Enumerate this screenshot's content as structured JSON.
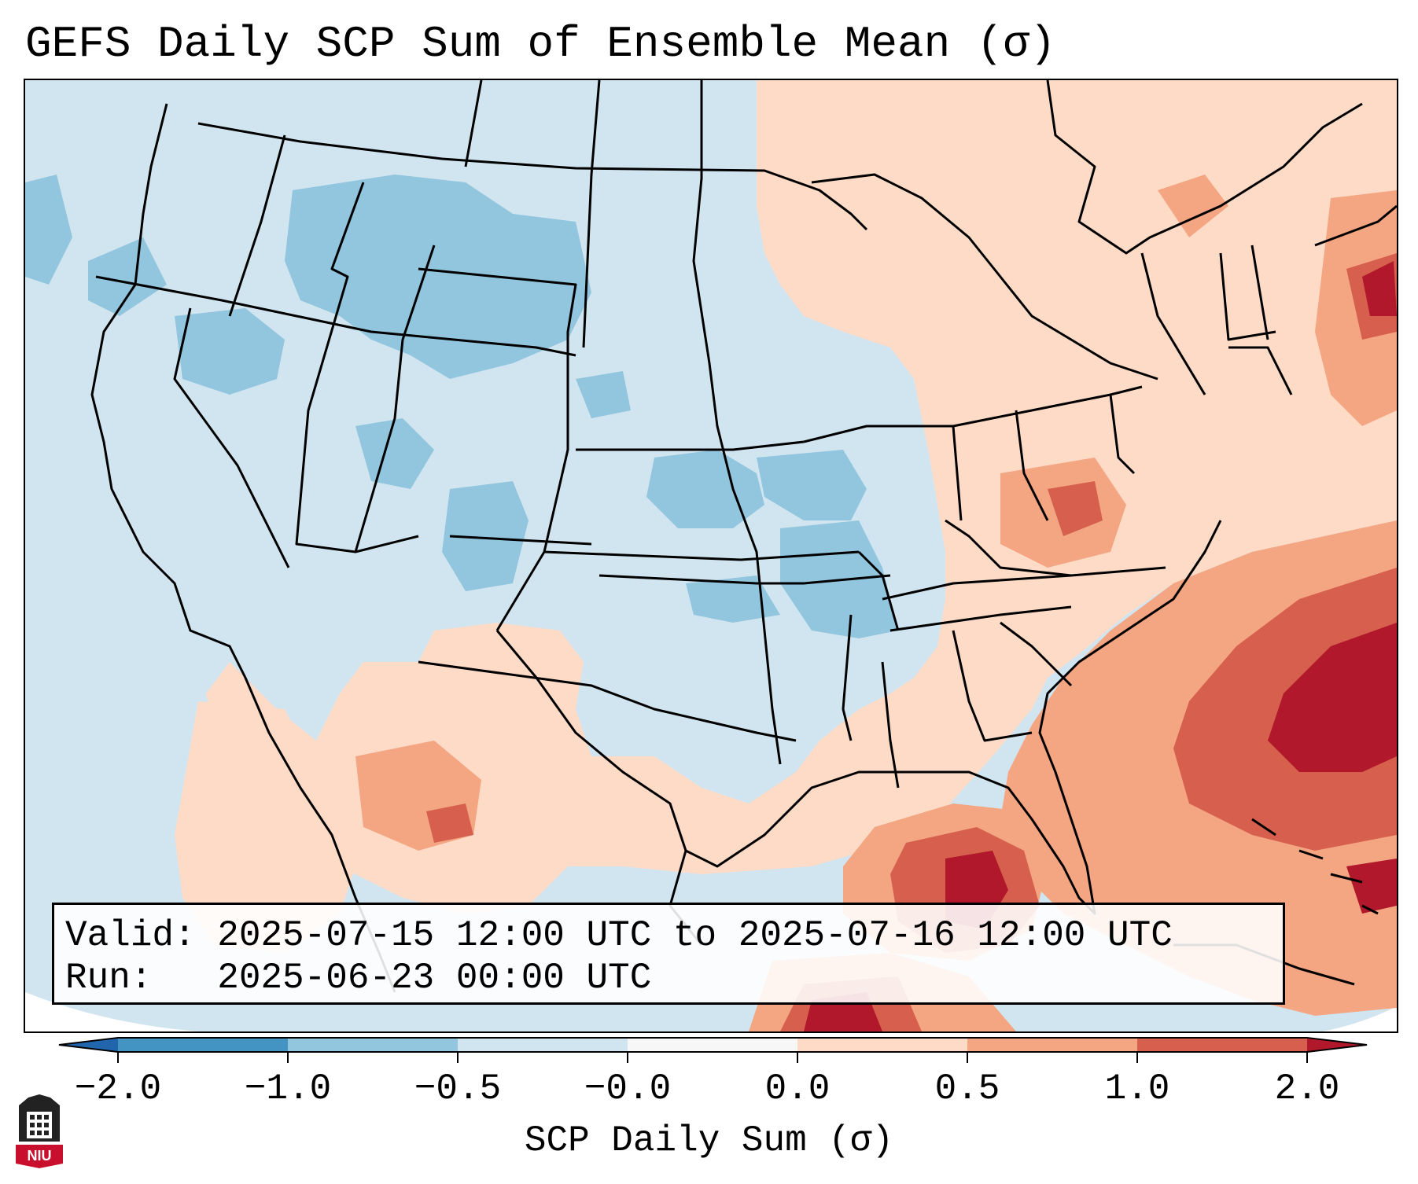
{
  "title": "GEFS Daily SCP Sum of Ensemble Mean (σ)",
  "info": {
    "valid_line": "Valid: 2025-07-15 12:00 UTC to 2025-07-16 12:00 UTC",
    "run_line": "Run:   2025-06-23 00:00 UTC"
  },
  "colorbar": {
    "label": "SCP Daily Sum (σ)",
    "ticks": [
      "−2.0",
      "−1.0",
      "−0.5",
      "−0.0",
      "0.0",
      "0.5",
      "1.0",
      "2.0"
    ],
    "colors": [
      "#2166ac",
      "#4393c3",
      "#92c5de",
      "#d1e5f0",
      "#f7f7f7",
      "#fddbc7",
      "#f4a582",
      "#d6604d",
      "#b2182b"
    ],
    "extend": "both"
  },
  "map": {
    "region": "Contiguous United States",
    "field_description": "SCP anomaly, standard deviations",
    "colors": {
      "land_background": "#d1e5f0",
      "neg_moderate": "#92c5de",
      "pos_light": "#fddbc7",
      "pos_moderate": "#f4a582",
      "pos_strong": "#d6604d",
      "pos_max": "#b2182b",
      "boundary": "#000000"
    }
  },
  "logo": {
    "icon": "niu-building-icon",
    "text": "NIU"
  }
}
